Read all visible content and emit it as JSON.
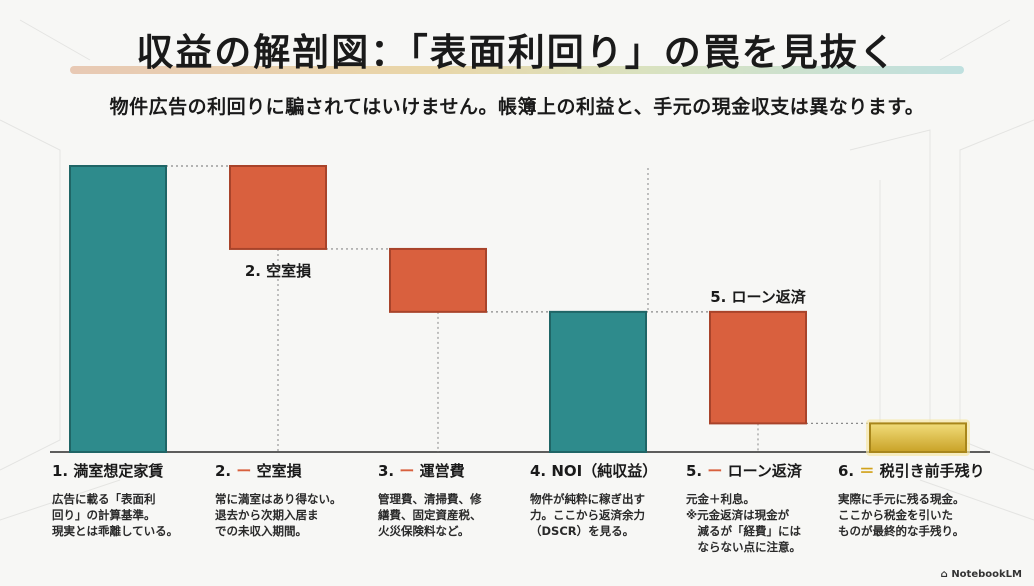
{
  "title": "収益の解剖図：「表面利回り」の罠を見抜く",
  "subtitle": "物件広告の利回りに騙されてはいけません。帳簿上の利益と、手元の現金収支は異なります。",
  "chart_data": {
    "type": "waterfall",
    "categories": [
      "1. 満室想定家賃",
      "2. ー 空室損",
      "3. ー 運営費",
      "4. NOI（純収益）",
      "5. ー ローン返済",
      "6. ＝ 税引き前手残り"
    ],
    "steps": [
      {
        "kind": "total",
        "start": 0,
        "end": 100,
        "color": "#2e8b8c"
      },
      {
        "kind": "decrease",
        "start": 100,
        "end": 71,
        "color": "#d9603e",
        "label": "2. 空室損"
      },
      {
        "kind": "decrease",
        "start": 71,
        "end": 49,
        "color": "#d9603e"
      },
      {
        "kind": "total",
        "start": 0,
        "end": 49,
        "color": "#2e8b8c"
      },
      {
        "kind": "decrease",
        "start": 49,
        "end": 10,
        "color": "#d9603e",
        "label": "5. ローン返済"
      },
      {
        "kind": "total",
        "start": 0,
        "end": 10,
        "color": "#e3c24a"
      }
    ]
  },
  "columns": [
    {
      "num": "1.",
      "op": "",
      "name": "満室想定家賃",
      "desc": [
        "広告に載る「表面利",
        "回り」の計算基準。",
        "現実とは乖離している。"
      ]
    },
    {
      "num": "2.",
      "op": "ー",
      "name": "空室損",
      "desc": [
        "常に満室はあり得ない。",
        "退去から次期入居ま",
        "での未収入期間。"
      ]
    },
    {
      "num": "3.",
      "op": "ー",
      "name": "運営費",
      "desc": [
        "管理費、清掃費、修",
        "繕費、固定資産税、",
        "火災保険料など。"
      ]
    },
    {
      "num": "4.",
      "op": "",
      "name": "NOI（純収益）",
      "desc": [
        "物件が純粋に稼ぎ出す",
        "力。ここから返済余力",
        "（DSCR）を見る。"
      ]
    },
    {
      "num": "5.",
      "op": "ー",
      "name": "ローン返済",
      "desc": [
        "元金＋利息。",
        "※元金返済は現金が",
        "　減るが「経費」には",
        "　ならない点に注意。"
      ]
    },
    {
      "num": "6.",
      "op": "＝",
      "name": "税引き前手残り",
      "desc": [
        "実際に手元に残る現金。",
        "ここから税金を引いた",
        "ものが最終的な手残り。"
      ]
    }
  ],
  "watermark": "NotebookLM"
}
